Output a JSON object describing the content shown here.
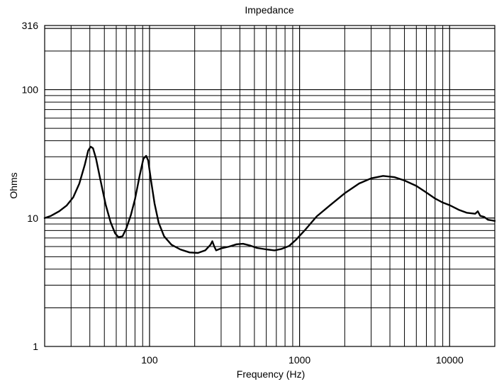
{
  "chart_data": {
    "type": "line",
    "title": "Impedance",
    "xlabel": "Frequency (Hz)",
    "ylabel": "Ohms",
    "x_scale": "log",
    "y_scale": "log",
    "xlim": [
      20,
      20000
    ],
    "ylim": [
      1,
      316
    ],
    "x_tick_labels": [
      "100",
      "1000",
      "10000"
    ],
    "x_tick_values": [
      100,
      1000,
      10000
    ],
    "y_tick_labels": [
      "1",
      "10",
      "100",
      "316"
    ],
    "y_tick_values": [
      1,
      10,
      100,
      316
    ],
    "grid": true,
    "legend": "none",
    "series": [
      {
        "color": "#000000",
        "points": [
          [
            20,
            10.0
          ],
          [
            22,
            10.4
          ],
          [
            25,
            11.3
          ],
          [
            28,
            12.5
          ],
          [
            31,
            14.5
          ],
          [
            34,
            18.5
          ],
          [
            37,
            26
          ],
          [
            39,
            33.5
          ],
          [
            40.5,
            36
          ],
          [
            42,
            35
          ],
          [
            44,
            29
          ],
          [
            47,
            20
          ],
          [
            51,
            12.7
          ],
          [
            55,
            9.3
          ],
          [
            59,
            7.6
          ],
          [
            62,
            7.1
          ],
          [
            66,
            7.2
          ],
          [
            70,
            8.3
          ],
          [
            75,
            10.5
          ],
          [
            80,
            14
          ],
          [
            86,
            21.5
          ],
          [
            91,
            29
          ],
          [
            95,
            30.5
          ],
          [
            98,
            28
          ],
          [
            102,
            20
          ],
          [
            108,
            13
          ],
          [
            115,
            9.2
          ],
          [
            125,
            7.2
          ],
          [
            140,
            6.2
          ],
          [
            160,
            5.7
          ],
          [
            185,
            5.4
          ],
          [
            210,
            5.35
          ],
          [
            235,
            5.6
          ],
          [
            255,
            6.2
          ],
          [
            262,
            6.6
          ],
          [
            270,
            6.0
          ],
          [
            278,
            5.6
          ],
          [
            300,
            5.8
          ],
          [
            340,
            6.0
          ],
          [
            380,
            6.25
          ],
          [
            420,
            6.3
          ],
          [
            470,
            6.1
          ],
          [
            520,
            5.85
          ],
          [
            600,
            5.7
          ],
          [
            680,
            5.6
          ],
          [
            760,
            5.75
          ],
          [
            850,
            6.05
          ],
          [
            950,
            6.8
          ],
          [
            1100,
            8.2
          ],
          [
            1300,
            10.3
          ],
          [
            1600,
            12.6
          ],
          [
            2000,
            15.6
          ],
          [
            2500,
            18.6
          ],
          [
            3000,
            20.4
          ],
          [
            3600,
            21.3
          ],
          [
            4300,
            20.8
          ],
          [
            5000,
            19.6
          ],
          [
            6000,
            17.8
          ],
          [
            7000,
            15.8
          ],
          [
            8000,
            14.2
          ],
          [
            9000,
            13.2
          ],
          [
            10000,
            12.6
          ],
          [
            11500,
            11.6
          ],
          [
            13000,
            11.0
          ],
          [
            14800,
            10.8
          ],
          [
            15400,
            11.3
          ],
          [
            16000,
            10.4
          ],
          [
            17000,
            10.2
          ],
          [
            18000,
            9.7
          ],
          [
            19000,
            9.6
          ],
          [
            20000,
            9.5
          ]
        ]
      }
    ]
  }
}
